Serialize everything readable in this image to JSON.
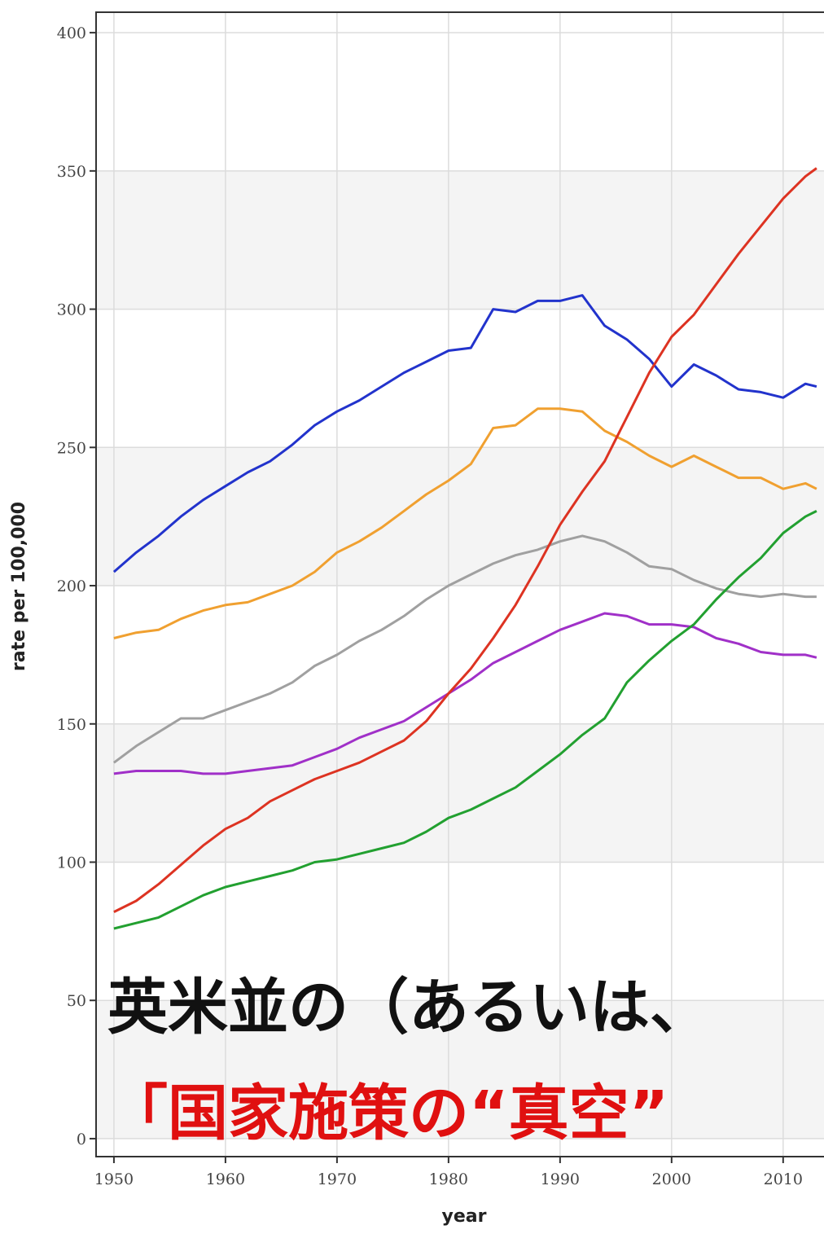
{
  "chart_data": {
    "type": "line",
    "x_label": "year",
    "y_label": "rate per 100,000",
    "x": [
      1950,
      1952,
      1954,
      1956,
      1958,
      1960,
      1962,
      1964,
      1966,
      1968,
      1970,
      1972,
      1974,
      1976,
      1978,
      1980,
      1982,
      1984,
      1986,
      1988,
      1990,
      1992,
      1994,
      1996,
      1998,
      2000,
      2002,
      2004,
      2006,
      2008,
      2010,
      2012,
      2013
    ],
    "series": [
      {
        "color": "#2233cc",
        "values": [
          205,
          212,
          218,
          225,
          231,
          236,
          241,
          245,
          251,
          258,
          263,
          267,
          272,
          277,
          281,
          285,
          286,
          300,
          299,
          303,
          303,
          305,
          294,
          289,
          282,
          272,
          280,
          276,
          271,
          270,
          268,
          273,
          272
        ]
      },
      {
        "color": "#f0a030",
        "values": [
          181,
          183,
          184,
          188,
          191,
          193,
          194,
          197,
          200,
          205,
          212,
          216,
          221,
          227,
          233,
          238,
          244,
          257,
          258,
          264,
          264,
          263,
          256,
          252,
          247,
          243,
          247,
          243,
          239,
          239,
          235,
          237,
          235
        ]
      },
      {
        "color": "#a0a0a0",
        "values": [
          136,
          142,
          147,
          152,
          152,
          155,
          158,
          161,
          165,
          171,
          175,
          180,
          184,
          189,
          195,
          200,
          204,
          208,
          211,
          213,
          216,
          218,
          216,
          212,
          207,
          206,
          202,
          199,
          197,
          196,
          197,
          196,
          196
        ]
      },
      {
        "color": "#a030c8",
        "values": [
          132,
          133,
          133,
          133,
          132,
          132,
          133,
          134,
          135,
          138,
          141,
          145,
          148,
          151,
          156,
          161,
          166,
          172,
          176,
          180,
          184,
          187,
          190,
          189,
          186,
          186,
          185,
          181,
          179,
          176,
          175,
          175,
          174
        ]
      },
      {
        "color": "#dd3322",
        "values": [
          82,
          86,
          92,
          99,
          106,
          112,
          116,
          122,
          126,
          130,
          133,
          136,
          140,
          144,
          151,
          161,
          170,
          181,
          193,
          207,
          222,
          234,
          245,
          261,
          277,
          290,
          298,
          309,
          320,
          330,
          340,
          348,
          351
        ]
      },
      {
        "color": "#22a030",
        "values": [
          76,
          78,
          80,
          84,
          88,
          91,
          93,
          95,
          97,
          100,
          101,
          103,
          105,
          107,
          111,
          116,
          119,
          123,
          127,
          133,
          139,
          146,
          152,
          165,
          173,
          180,
          186,
          195,
          203,
          210,
          219,
          225,
          227
        ]
      }
    ],
    "xlim": [
      1948.4,
      2016
    ],
    "ylim": [
      -6.5,
      407.4
    ],
    "xticks": [
      1950,
      1960,
      1970,
      1980,
      1990,
      2000,
      2010
    ],
    "yticks": [
      0,
      50,
      100,
      150,
      200,
      250,
      300,
      350,
      400
    ],
    "grid": true,
    "annotations": [
      {
        "text": "英米並の（あるいは、",
        "color": "#111111"
      },
      {
        "text": "「国家施策の“真空”",
        "color": "#e01010"
      }
    ]
  }
}
